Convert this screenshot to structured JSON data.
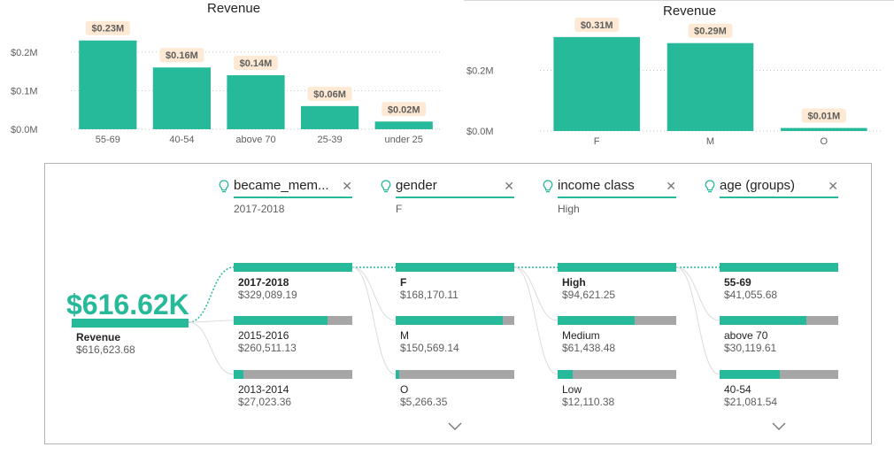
{
  "chart_left": {
    "type": "bar",
    "title": "Revenue",
    "categories": [
      "55-69",
      "40-54",
      "above 70",
      "25-39",
      "under 25"
    ],
    "values": [
      0.23,
      0.16,
      0.14,
      0.06,
      0.02
    ],
    "data_labels": [
      "$0.23M",
      "$0.16M",
      "$0.14M",
      "$0.06M",
      "$0.02M"
    ],
    "y_ticks": [
      0,
      0.1,
      0.2
    ],
    "y_tick_labels": [
      "$0.0M",
      "$0.1M",
      "$0.2M"
    ],
    "ylim": [
      0,
      0.25
    ],
    "bar_color": "#26b99a",
    "label_bg": "#fde9d4",
    "grid": true
  },
  "chart_right": {
    "type": "bar",
    "title": "Revenue",
    "categories": [
      "F",
      "M",
      "O"
    ],
    "values": [
      0.31,
      0.29,
      0.01
    ],
    "data_labels": [
      "$0.31M",
      "$0.29M",
      "$0.01M"
    ],
    "y_ticks": [
      0,
      0.2
    ],
    "y_tick_labels": [
      "$0.0M",
      "$0.2M"
    ],
    "ylim": [
      0,
      0.33
    ],
    "bar_color": "#26b99a",
    "label_bg": "#fde9d4",
    "grid": true
  },
  "tree": {
    "root": {
      "big_value": "$616.62K",
      "label": "Revenue",
      "value": "$616,623.68"
    },
    "columns": [
      {
        "header": "became_mem...",
        "selected": "2017-2018",
        "nodes": [
          {
            "label": "2017-2018",
            "value": "$329,089.19",
            "share": 1.0,
            "selected": true
          },
          {
            "label": "2015-2016",
            "value": "$260,511.13",
            "share": 0.79,
            "selected": false
          },
          {
            "label": "2013-2014",
            "value": "$27,023.36",
            "share": 0.08,
            "selected": false
          }
        ],
        "more": false
      },
      {
        "header": "gender",
        "selected": "F",
        "nodes": [
          {
            "label": "F",
            "value": "$168,170.11",
            "share": 1.0,
            "selected": true
          },
          {
            "label": "M",
            "value": "$150,569.14",
            "share": 0.9,
            "selected": false
          },
          {
            "label": "O",
            "value": "$5,266.35",
            "share": 0.03,
            "selected": false
          }
        ],
        "more": true
      },
      {
        "header": "income class",
        "selected": "High",
        "nodes": [
          {
            "label": "High",
            "value": "$94,621.25",
            "share": 1.0,
            "selected": true
          },
          {
            "label": "Medium",
            "value": "$61,438.48",
            "share": 0.65,
            "selected": false
          },
          {
            "label": "Low",
            "value": "$12,110.38",
            "share": 0.13,
            "selected": false
          }
        ],
        "more": false
      },
      {
        "header": "age (groups)",
        "selected": "",
        "nodes": [
          {
            "label": "55-69",
            "value": "$41,055.68",
            "share": 1.0,
            "selected": true
          },
          {
            "label": "above 70",
            "value": "$30,119.61",
            "share": 0.73,
            "selected": false
          },
          {
            "label": "40-54",
            "value": "$21,081.54",
            "share": 0.51,
            "selected": false
          }
        ],
        "more": true
      }
    ],
    "colors": {
      "accent": "#26b99a",
      "remainder": "#a6a6a6"
    },
    "icons": {
      "header": "lightbulb-icon",
      "close": "close-icon",
      "more": "chevron-down-icon"
    }
  }
}
